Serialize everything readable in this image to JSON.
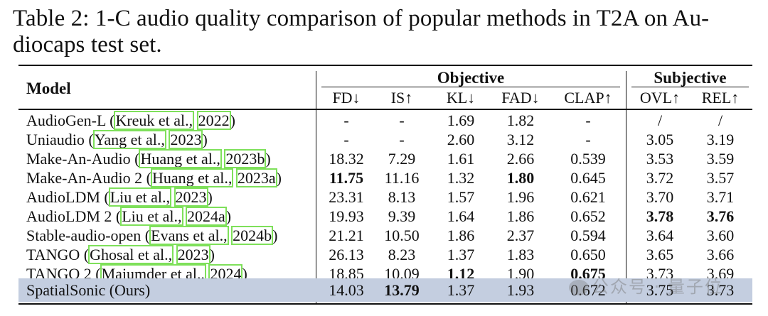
{
  "caption": "Table 2: 1-C audio quality comparison of popular methods in T2A on Audiocaps test set.",
  "caption_line1": "Table 2: 1-C audio quality comparison of popular methods in T2A on Au-",
  "caption_line2": "diocaps test set.",
  "headers": {
    "model": "Model",
    "objective": "Objective",
    "subjective": "Subjective",
    "fd": "FD↓",
    "is": "IS↑",
    "kl": "KL↓",
    "fad": "FAD↓",
    "clap": "CLAP↑",
    "ovl": "OVL↑",
    "rel": "REL↑"
  },
  "rows": [
    {
      "name": "AudioGen-L",
      "cite_author": "Kreuk et al.,",
      "cite_year": "2022",
      "fd": "-",
      "is": "-",
      "kl": "1.69",
      "fad": "1.82",
      "clap": "-",
      "ovl": "/",
      "rel": "/"
    },
    {
      "name": "Uniaudio",
      "cite_author": "Yang et al.,",
      "cite_year": "2023",
      "fd": "-",
      "is": "-",
      "kl": "2.60",
      "fad": "3.12",
      "clap": "-",
      "ovl": "3.05",
      "rel": "3.19"
    },
    {
      "name": "Make-An-Audio",
      "cite_author": "Huang et al.,",
      "cite_year": "2023b",
      "fd": "18.32",
      "is": "7.29",
      "kl": "1.61",
      "fad": "2.66",
      "clap": "0.539",
      "ovl": "3.53",
      "rel": "3.59"
    },
    {
      "name": "Make-An-Audio 2",
      "cite_author": "Huang et al.,",
      "cite_year": "2023a",
      "fd": "11.75",
      "is": "11.16",
      "kl": "1.32",
      "fad": "1.80",
      "clap": "0.645",
      "ovl": "3.72",
      "rel": "3.57"
    },
    {
      "name": "AudioLDM",
      "cite_author": "Liu et al.,",
      "cite_year": "2023",
      "fd": "23.31",
      "is": "8.13",
      "kl": "1.57",
      "fad": "1.96",
      "clap": "0.621",
      "ovl": "3.70",
      "rel": "3.71"
    },
    {
      "name": "AudioLDM 2",
      "cite_author": "Liu et al.,",
      "cite_year": "2024a",
      "fd": "19.93",
      "is": "9.39",
      "kl": "1.64",
      "fad": "1.86",
      "clap": "0.652",
      "ovl": "3.78",
      "rel": "3.76"
    },
    {
      "name": "Stable-audio-open",
      "cite_author": "Evans et al.,",
      "cite_year": "2024b",
      "fd": "21.21",
      "is": "10.50",
      "kl": "1.86",
      "fad": "2.37",
      "clap": "0.594",
      "ovl": "3.64",
      "rel": "3.60"
    },
    {
      "name": "TANGO",
      "cite_author": "Ghosal et al.,",
      "cite_year": "2023",
      "fd": "26.13",
      "is": "8.23",
      "kl": "1.37",
      "fad": "1.83",
      "clap": "0.650",
      "ovl": "3.65",
      "rel": "3.66"
    },
    {
      "name": "TANGO 2",
      "cite_author": "Majumder et al.,",
      "cite_year": "2024",
      "fd": "18.85",
      "is": "10.09",
      "kl": "1.12",
      "fad": "1.90",
      "clap": "0.675",
      "ovl": "3.73",
      "rel": "3.69"
    }
  ],
  "ours": {
    "name": "SpatialSonic (Ours)",
    "fd": "14.03",
    "is": "13.79",
    "kl": "1.37",
    "fad": "1.93",
    "clap": "0.672",
    "ovl": "3.75",
    "rel": "3.73"
  },
  "watermark": "公众号 · 量子位"
}
